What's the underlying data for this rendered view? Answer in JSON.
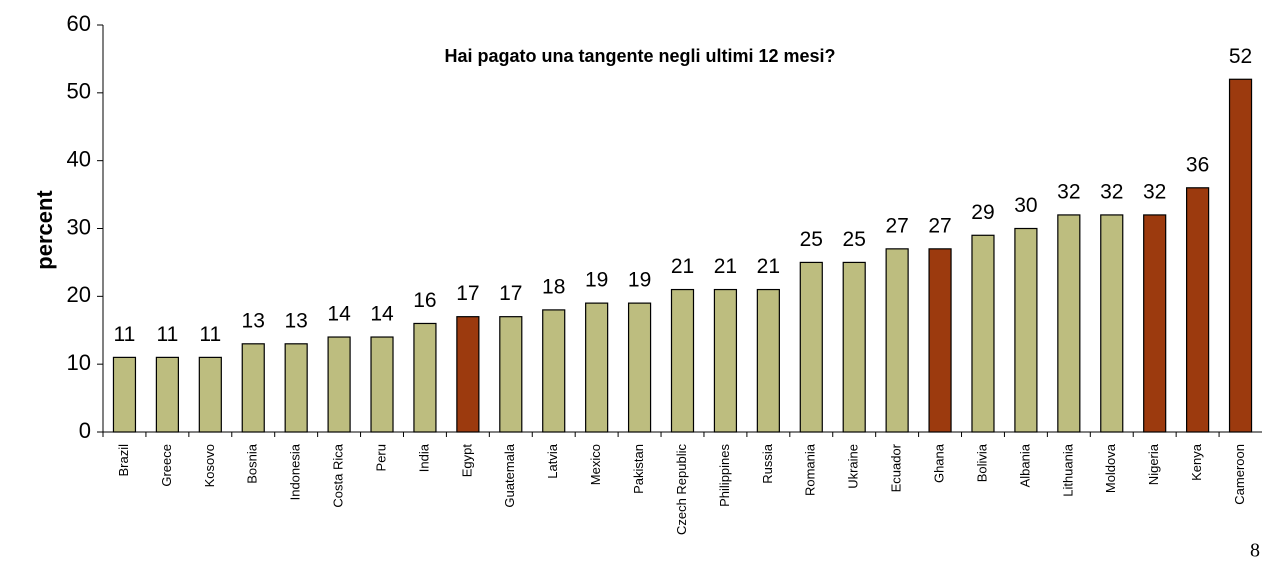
{
  "chart_data": {
    "type": "bar",
    "title": "Hai pagato una tangente negli ultimi 12 mesi?",
    "y_label": "percent",
    "categories": [
      "Brazil",
      "Greece",
      "Kosovo",
      "Bosnia",
      "Indonesia",
      "Costa Rica",
      "Peru",
      "India",
      "Egypt",
      "Guatemala",
      "Latvia",
      "Mexico",
      "Pakistan",
      "Czech Republic",
      "Philippines",
      "Russia",
      "Romania",
      "Ukraine",
      "Ecuador",
      "Ghana",
      "Bolivia",
      "Albania",
      "Lithuania",
      "Moldova",
      "Nigeria",
      "Kenya",
      "Cameroon"
    ],
    "values": [
      11,
      11,
      11,
      13,
      13,
      14,
      14,
      16,
      17,
      17,
      18,
      19,
      19,
      21,
      21,
      21,
      25,
      25,
      27,
      27,
      29,
      30,
      32,
      32,
      32,
      36,
      52
    ],
    "colors": [
      "#bdbd7f",
      "#bdbd7f",
      "#bdbd7f",
      "#bdbd7f",
      "#bdbd7f",
      "#bdbd7f",
      "#bdbd7f",
      "#bdbd7f",
      "#9c3a0e",
      "#bdbd7f",
      "#bdbd7f",
      "#bdbd7f",
      "#bdbd7f",
      "#bdbd7f",
      "#bdbd7f",
      "#bdbd7f",
      "#bdbd7f",
      "#bdbd7f",
      "#bdbd7f",
      "#9c3a0e",
      "#bdbd7f",
      "#bdbd7f",
      "#bdbd7f",
      "#bdbd7f",
      "#9c3a0e",
      "#9c3a0e",
      "#9c3a0e"
    ],
    "ylim": [
      0,
      60
    ],
    "yticks": [
      0,
      10,
      20,
      30,
      40,
      50,
      60
    ],
    "grid": false
  },
  "page_number": "8"
}
